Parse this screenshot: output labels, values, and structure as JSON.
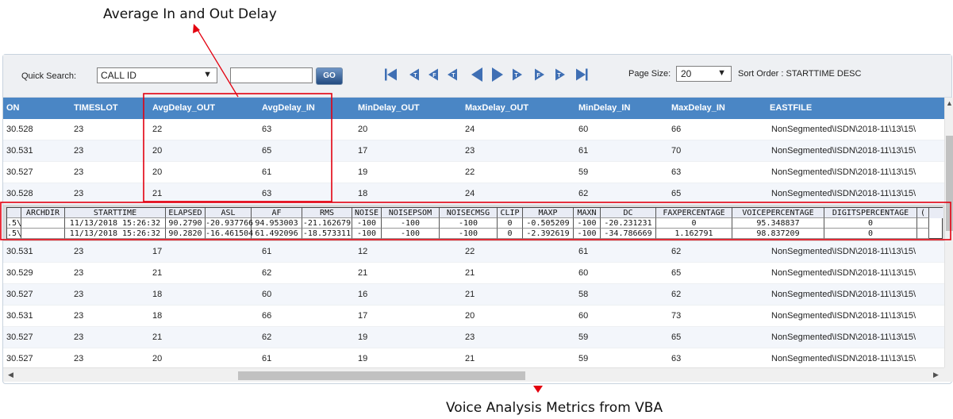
{
  "annotations": {
    "top_callout": "Average In and Out Delay",
    "bottom_callout": "Voice Analysis Metrics from VBA",
    "highlight_color": "#e3000f"
  },
  "toolbar": {
    "quick_search_label": "Quick Search:",
    "search_field_value": "CALL ID",
    "search_input_value": "",
    "go_label": "GO",
    "page_size_label": "Page Size:",
    "page_size_value": "20",
    "sort_order": "Sort Order : STARTTIME DESC",
    "pager_icons": [
      "first-page-icon",
      "prev-ten-pages-icon",
      "prev-five-pages-icon",
      "prev-two-pages-icon",
      "prev-page-icon",
      "next-page-icon",
      "next-two-pages-icon",
      "next-five-pages-icon",
      "next-ten-pages-icon",
      "last-page-icon"
    ]
  },
  "grid": {
    "header_color": "#4a86c5",
    "columns": [
      "ON",
      "TIMESLOT",
      "AvgDelay_OUT",
      "AvgDelay_IN",
      "MinDelay_OUT",
      "MaxDelay_OUT",
      "MinDelay_IN",
      "MaxDelay_IN",
      "EASTFILE"
    ],
    "rows_above": [
      [
        "30.528",
        "23",
        "22",
        "63",
        "20",
        "24",
        "60",
        "66",
        "NonSegmented\\ISDN\\2018-11\\13\\15\\"
      ],
      [
        "30.531",
        "23",
        "20",
        "65",
        "17",
        "23",
        "61",
        "70",
        "NonSegmented\\ISDN\\2018-11\\13\\15\\"
      ],
      [
        "30.527",
        "23",
        "20",
        "61",
        "19",
        "22",
        "59",
        "63",
        "NonSegmented\\ISDN\\2018-11\\13\\15\\"
      ],
      [
        "30.528",
        "23",
        "21",
        "63",
        "18",
        "24",
        "62",
        "65",
        "NonSegmented\\ISDN\\2018-11\\13\\15\\"
      ]
    ],
    "rows_below": [
      [
        "30.531",
        "23",
        "17",
        "61",
        "12",
        "22",
        "61",
        "62",
        "NonSegmented\\ISDN\\2018-11\\13\\15\\"
      ],
      [
        "30.529",
        "23",
        "21",
        "62",
        "21",
        "21",
        "60",
        "65",
        "NonSegmented\\ISDN\\2018-11\\13\\15\\"
      ],
      [
        "30.527",
        "23",
        "18",
        "60",
        "16",
        "21",
        "58",
        "62",
        "NonSegmented\\ISDN\\2018-11\\13\\15\\"
      ],
      [
        "30.531",
        "23",
        "18",
        "66",
        "17",
        "20",
        "60",
        "73",
        "NonSegmented\\ISDN\\2018-11\\13\\15\\"
      ],
      [
        "30.527",
        "23",
        "21",
        "62",
        "19",
        "23",
        "59",
        "65",
        "NonSegmented\\ISDN\\2018-11\\13\\15\\"
      ],
      [
        "30.527",
        "23",
        "20",
        "61",
        "19",
        "21",
        "59",
        "63",
        "NonSegmented\\ISDN\\2018-11\\13\\15\\"
      ]
    ]
  },
  "detail": {
    "columns": [
      "",
      "ARCHDIR",
      "STARTTIME",
      "ELAPSED",
      "ASL",
      "AF",
      "RMS",
      "NOISE",
      "NOISEPSOM",
      "NOISECMSG",
      "CLIP",
      "MAXP",
      "MAXN",
      "DC",
      "FAXPERCENTAGE",
      "VOICEPERCENTAGE",
      "DIGITSPERCENTAGE",
      "("
    ],
    "rows": [
      [
        ".5\\",
        "",
        "11/13/2018 15:26:32",
        "90.2790",
        "-20.937766",
        "94.953003",
        "-21.162679",
        "-100",
        "-100",
        "-100",
        "0",
        "-0.505209",
        "-100",
        "-20.231231",
        "0",
        "95.348837",
        "0",
        ""
      ],
      [
        ".5\\",
        "",
        "11/13/2018 15:26:32",
        "90.2820",
        "-16.461504",
        "61.492096",
        "-18.573311",
        "-100",
        "-100",
        "-100",
        "0",
        "-2.392619",
        "-100",
        "-34.786669",
        "1.162791",
        "98.837209",
        "0",
        ""
      ]
    ]
  }
}
